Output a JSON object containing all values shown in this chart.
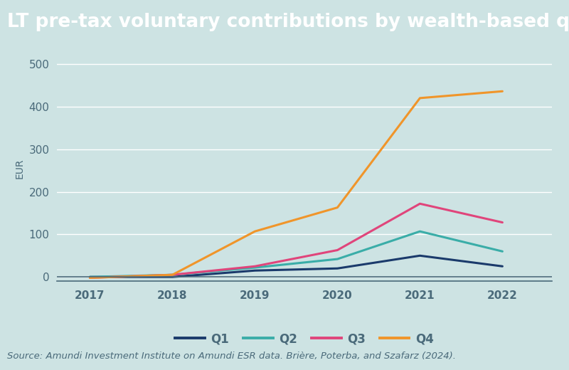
{
  "title": "LT pre-tax voluntary contributions by wealth-based quartiles",
  "ylabel": "EUR",
  "source": "Source: Amundi Investment Institute on Amundi ESR data. Brière, Poterba, and Szafarz (2024).",
  "x": [
    2017,
    2018,
    2019,
    2020,
    2021,
    2022
  ],
  "series": {
    "Q1": [
      0,
      0,
      15,
      20,
      50,
      25
    ],
    "Q2": [
      0,
      5,
      22,
      42,
      107,
      60
    ],
    "Q3": [
      -2,
      5,
      25,
      63,
      172,
      128
    ],
    "Q4": [
      -2,
      5,
      107,
      163,
      420,
      436
    ]
  },
  "colors": {
    "Q1": "#1a3a6b",
    "Q2": "#3aada8",
    "Q3": "#e0457b",
    "Q4": "#f0952a"
  },
  "ylim": [
    -10,
    520
  ],
  "yticks": [
    0,
    100,
    200,
    300,
    400,
    500
  ],
  "background_color": "#cde3e3",
  "title_background": "#3a9ea5",
  "title_color": "#ffffff",
  "axis_color": "#4a6a7a",
  "legend_labels": [
    "Q1",
    "Q2",
    "Q3",
    "Q4"
  ],
  "line_width": 2.2,
  "title_fontsize": 19,
  "axis_label_fontsize": 10,
  "tick_fontsize": 11,
  "source_fontsize": 9.5
}
